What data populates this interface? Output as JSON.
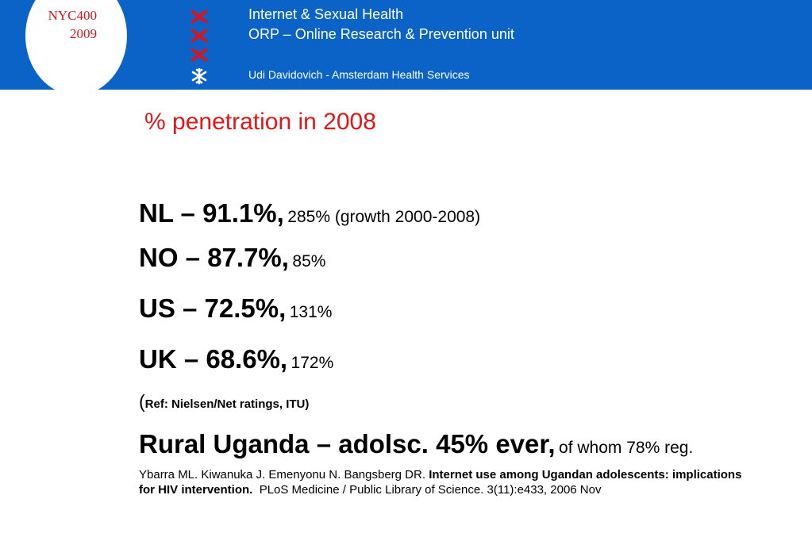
{
  "header": {
    "badge_line1": "NYC400",
    "badge_line2": "2009",
    "line1": "Internet & Sexual Health",
    "line2": "ORP – Online Research & Prevention unit",
    "line3": "Udi Davidovich - Amsterdam Health Services",
    "colors": {
      "band": "#0b63c7",
      "cross": "#d8151d",
      "title": "#e3161b"
    },
    "icons": [
      "cross-icon",
      "cross-icon",
      "cross-icon",
      "snowflake-icon"
    ]
  },
  "title": "% penetration in 2008",
  "stats": [
    {
      "main": "NL – 91.1%,",
      "detail": "285% (growth 2000-2008)"
    },
    {
      "main": "NO – 87.7%,",
      "detail": "85%"
    },
    {
      "main": "US – 72.5%,",
      "detail": "131%"
    },
    {
      "main": "UK – 68.6%,",
      "detail": "172%"
    }
  ],
  "ref": {
    "open": "(",
    "text": "Ref: Nielsen/Net ratings, ITU)"
  },
  "uganda": {
    "main": "Rural Uganda – adolsc. 45% ever,",
    "detail": "of whom 78% reg."
  },
  "citation": {
    "authors": "Ybarra ML. Kiwanuka J. Emenyonu N. Bangsberg DR.",
    "article": "Internet use among Ugandan adolescents: implications for HIV intervention.",
    "journal": "PLoS Medicine / Public Library of Science. 3(11):e433, 2006 Nov"
  }
}
